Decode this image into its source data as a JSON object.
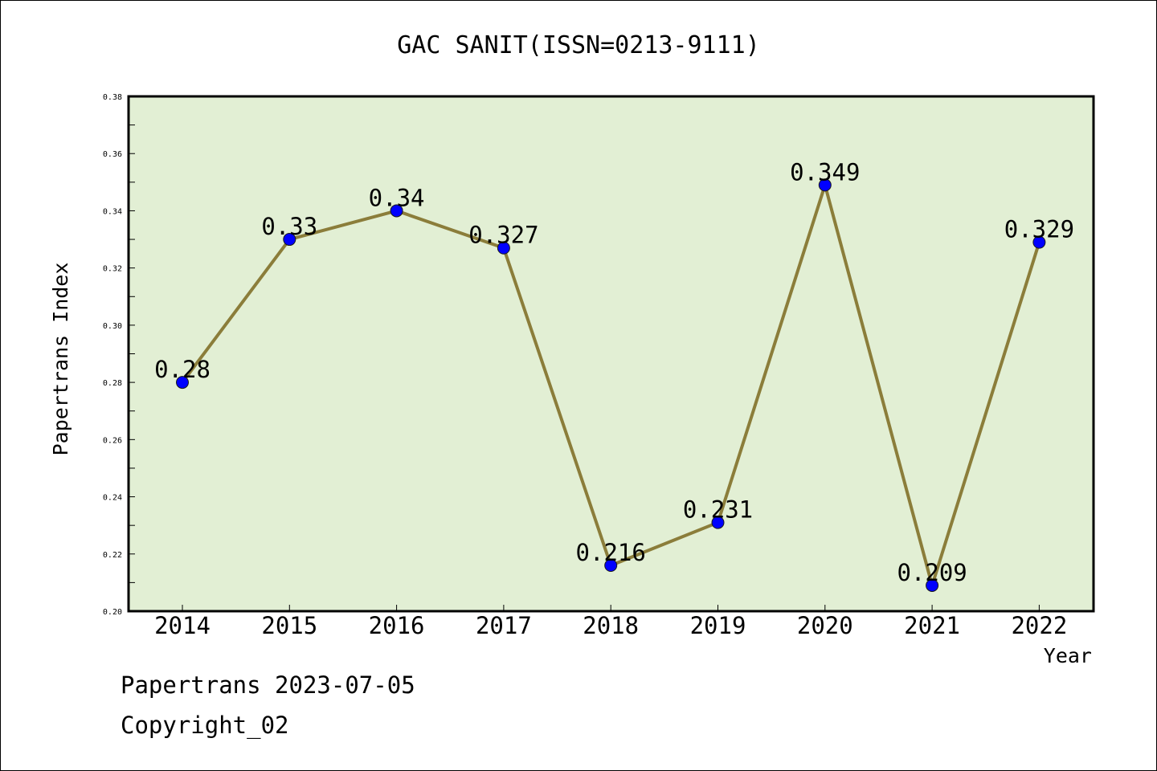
{
  "chart_data": {
    "type": "line",
    "title": "GAC SANIT(ISSN=0213-9111)",
    "xlabel": "Year",
    "ylabel": "Papertrans Index",
    "categories": [
      "2014",
      "2015",
      "2016",
      "2017",
      "2018",
      "2019",
      "2020",
      "2021",
      "2022"
    ],
    "series": [
      {
        "values": [
          0.28,
          0.33,
          0.34,
          0.327,
          0.216,
          0.231,
          0.349,
          0.209,
          0.329
        ],
        "data_labels": [
          "0.28",
          "0.33",
          "0.34",
          "0.327",
          "0.216",
          "0.231",
          "0.349",
          "0.209",
          "0.329"
        ],
        "line_color": "#8b7d3a",
        "marker_color": "#0000ff"
      }
    ],
    "ylim": [
      0.2,
      0.38
    ],
    "yticks": [
      "0.20",
      "0.22",
      "0.24",
      "0.26",
      "0.28",
      "0.30",
      "0.32",
      "0.34",
      "0.36",
      "0.38"
    ],
    "plot_background": "#e2efd4",
    "grid": false,
    "legend": "none"
  },
  "footer": {
    "line1": "Papertrans 2023-07-05",
    "line2": "Copyright_02"
  }
}
